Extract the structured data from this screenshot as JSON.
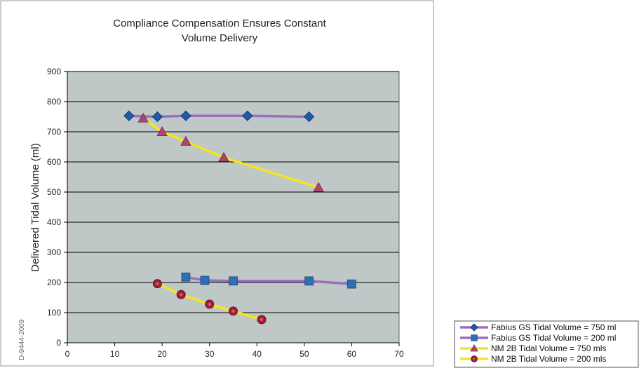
{
  "chart_data": {
    "type": "line",
    "title": [
      "Compliance Compensation Ensures Constant",
      "Volume Delivery"
    ],
    "xlabel": "",
    "ylabel": "Delivered Tidal Volume (ml)",
    "xlim": [
      0,
      70
    ],
    "ylim": [
      0,
      900
    ],
    "xticks": [
      "0",
      "10",
      "20",
      "30",
      "40",
      "50",
      "60",
      "70"
    ],
    "yticks": [
      "0",
      "100",
      "200",
      "300",
      "400",
      "500",
      "600",
      "700",
      "800",
      "900"
    ],
    "grid": "horizontal",
    "legend_position": "bottom-right",
    "series": [
      {
        "name": "Fabius GS Tidal Volume = 750 ml",
        "line_color": "#9b6fbf",
        "marker_color": "#1f5aa6",
        "marker": "diamond",
        "x": [
          13,
          19,
          25,
          38,
          51
        ],
        "y": [
          753,
          750,
          753,
          753,
          750
        ]
      },
      {
        "name": "Fabius GS Tidal Volume = 200 ml",
        "line_color": "#9b6fbf",
        "marker_color": "#2f6fb5",
        "marker": "square",
        "x": [
          25,
          29,
          35,
          51,
          60
        ],
        "y": [
          218,
          207,
          205,
          205,
          195
        ]
      },
      {
        "name": "NM 2B Tidal Volume = 750 mls",
        "line_color": "#f4e61e",
        "marker_color": "#b0466f",
        "marker": "triangle",
        "x": [
          16,
          20,
          25,
          33,
          53
        ],
        "y": [
          745,
          700,
          668,
          615,
          515
        ]
      },
      {
        "name": "NM 2B Tidal Volume = 200 mls",
        "line_color": "#f4e61e",
        "marker_color": "#a0203a",
        "marker": "circle",
        "x": [
          19,
          24,
          30,
          35,
          41
        ],
        "y": [
          196,
          160,
          128,
          105,
          77
        ]
      }
    ]
  },
  "side_code": "D-9444-2009",
  "colors": {
    "plot_background": "#bfc7c7",
    "grid": "#000000"
  }
}
